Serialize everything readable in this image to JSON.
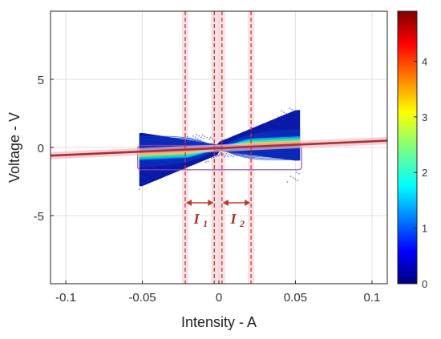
{
  "chart_data": {
    "type": "scatter",
    "title": "",
    "xlabel": "Intensity - A",
    "ylabel": "Voltage - V",
    "xlim": [
      -0.11,
      0.11
    ],
    "ylim": [
      -10,
      10
    ],
    "xticks": [
      -0.1,
      -0.05,
      0,
      0.05,
      0.1
    ],
    "xtick_labels": [
      "-0.1",
      "-0.05",
      "0",
      "0.05",
      "0.1"
    ],
    "yticks": [
      -5,
      0,
      5
    ],
    "ytick_labels": [
      "-5",
      "0",
      "5"
    ],
    "grid": true,
    "colorbar": {
      "range": [
        0,
        4.9
      ],
      "ticks": [
        0,
        1,
        2,
        3,
        4
      ],
      "tick_labels": [
        "0",
        "1",
        "2",
        "3",
        "4"
      ],
      "colormap": "jet"
    },
    "fit_line": {
      "x": [
        -0.11,
        0.11
      ],
      "y": [
        -0.6,
        0.5
      ],
      "color": "#a8322a"
    },
    "scatter_extent": {
      "x": [
        -0.052,
        0.053
      ],
      "y": [
        -2.6,
        2.8
      ]
    },
    "threshold_lines_x": [
      -0.022,
      -0.003,
      0.002,
      0.021
    ],
    "annotations": [
      {
        "label": "I",
        "subscript": "1",
        "x_range": [
          -0.022,
          -0.003
        ]
      },
      {
        "label": "I",
        "subscript": "2",
        "x_range": [
          0.002,
          0.021
        ]
      }
    ],
    "colors": {
      "threshold": "#c0392b",
      "highlight": "#f4c6d0",
      "fit": "#a8322a",
      "box": "#8e44ad"
    }
  }
}
